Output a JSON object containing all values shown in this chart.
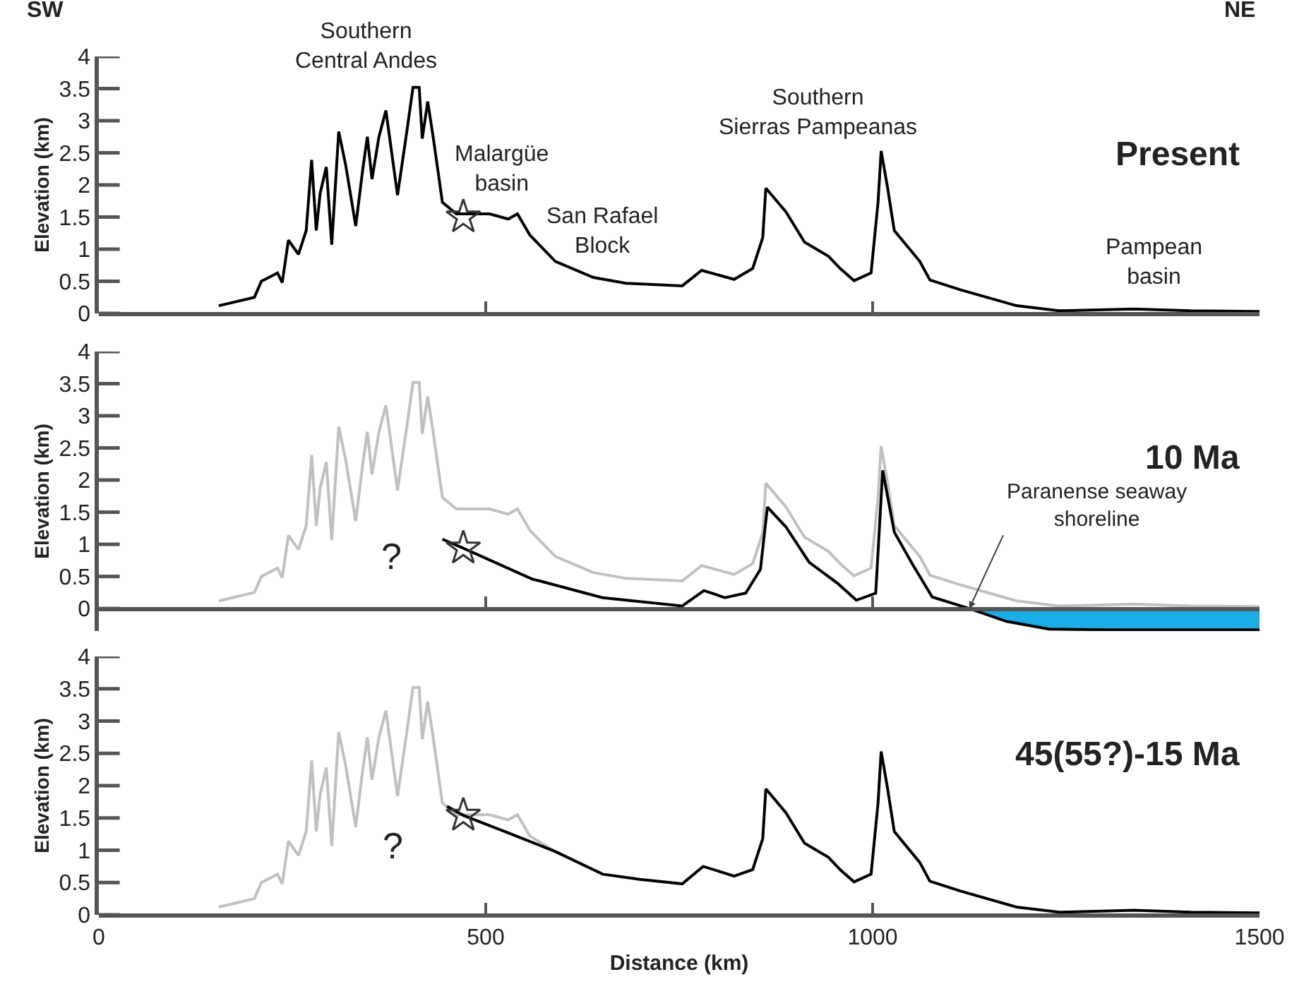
{
  "chart_data": [
    {
      "type": "line",
      "title": "Present",
      "ylabel": "Elevation (km)",
      "xlim": [
        0,
        1500
      ],
      "xticks": [
        0,
        500,
        1000,
        1500
      ],
      "ylim": [
        0,
        4
      ],
      "yticks": [
        0,
        0.5,
        1,
        1.5,
        2,
        2.5,
        3,
        3.5,
        4
      ],
      "tick_labels": "y",
      "legend": false,
      "series": [
        {
          "type": "line",
          "color": "#000000",
          "marker": "none",
          "x": [
            155,
            201,
            210,
            231,
            237,
            245,
            258,
            268,
            275,
            281,
            286,
            294,
            301,
            310,
            319,
            332,
            341,
            347,
            353,
            362,
            371,
            386,
            398,
            406,
            414,
            418,
            425,
            432,
            444,
            462,
            505,
            529,
            541,
            557,
            590,
            639,
            681,
            754,
            779,
            821,
            845,
            858,
            862,
            888,
            912,
            943,
            958,
            976,
            998,
            1007,
            1011,
            1019,
            1028,
            1061,
            1074,
            1113,
            1186,
            1241,
            1338,
            1411,
            1500
          ],
          "values": [
            0.12,
            0.25,
            0.5,
            0.63,
            0.48,
            1.14,
            0.92,
            1.29,
            2.39,
            1.29,
            1.87,
            2.28,
            1.07,
            2.83,
            2.31,
            1.36,
            2.24,
            2.75,
            2.09,
            2.75,
            3.16,
            1.84,
            2.83,
            3.52,
            3.52,
            2.72,
            3.3,
            2.75,
            1.73,
            1.55,
            1.55,
            1.47,
            1.55,
            1.22,
            0.81,
            0.56,
            0.47,
            0.43,
            0.67,
            0.53,
            0.7,
            1.18,
            1.95,
            1.58,
            1.11,
            0.89,
            0.7,
            0.51,
            0.63,
            1.73,
            2.53,
            1.98,
            1.29,
            0.81,
            0.52,
            0.37,
            0.12,
            0.04,
            0.07,
            0.04,
            0.03
          ]
        },
        {
          "type": "scatter",
          "color": "#333333",
          "marker": "star",
          "x": [
            471
          ],
          "values": [
            1.5
          ]
        }
      ],
      "annotations": [
        "SW",
        "NE",
        "Southern\nCentral Andes",
        "Malargüe\nbasin",
        "San Rafael\nBlock",
        "Southern\nSierras Pampeanas",
        "Pampean\nbasin"
      ]
    },
    {
      "type": "line",
      "title": "10 Ma",
      "ylabel": "Elevation (km)",
      "xlim": [
        0,
        1500
      ],
      "xticks": [
        0,
        500,
        1000,
        1500
      ],
      "ylim": [
        -0.35,
        4
      ],
      "yticks": [
        0,
        0.5,
        1,
        1.5,
        2,
        2.5,
        3,
        3.5,
        4
      ],
      "tick_labels": "y",
      "legend": false,
      "series": [
        {
          "type": "line",
          "color": "#c0c0c0",
          "marker": "none",
          "x": [
            155,
            201,
            210,
            231,
            237,
            245,
            258,
            268,
            275,
            281,
            286,
            294,
            301,
            310,
            319,
            332,
            341,
            347,
            353,
            362,
            371,
            386,
            398,
            406,
            414,
            418,
            425,
            432,
            444,
            462,
            505,
            529,
            541,
            557,
            590,
            639,
            681,
            754,
            779,
            821,
            845,
            858,
            862,
            888,
            912,
            943,
            958,
            976,
            998,
            1007,
            1011,
            1019,
            1028,
            1061,
            1074,
            1113,
            1186,
            1241,
            1338,
            1411,
            1500
          ],
          "values": [
            0.12,
            0.25,
            0.5,
            0.63,
            0.48,
            1.14,
            0.92,
            1.29,
            2.39,
            1.29,
            1.87,
            2.28,
            1.07,
            2.83,
            2.31,
            1.36,
            2.24,
            2.75,
            2.09,
            2.75,
            3.16,
            1.84,
            2.83,
            3.52,
            3.52,
            2.72,
            3.3,
            2.75,
            1.73,
            1.55,
            1.55,
            1.47,
            1.55,
            1.22,
            0.81,
            0.56,
            0.47,
            0.43,
            0.67,
            0.53,
            0.7,
            1.18,
            1.95,
            1.58,
            1.11,
            0.89,
            0.7,
            0.51,
            0.63,
            1.73,
            2.53,
            1.98,
            1.29,
            0.81,
            0.52,
            0.37,
            0.12,
            0.04,
            0.07,
            0.04,
            0.03
          ]
        },
        {
          "type": "area",
          "color": "#1aaee8",
          "x": [
            1125,
            1173,
            1228,
            1300,
            1400,
            1500
          ],
          "values": [
            0,
            -0.2,
            -0.32,
            -0.33,
            -0.33,
            -0.33
          ]
        },
        {
          "type": "line",
          "color": "#000000",
          "marker": "none",
          "x": [
            444,
            471,
            560,
            651,
            754,
            782,
            809,
            836,
            855,
            864,
            888,
            918,
            955,
            979,
            1004,
            1013,
            1028,
            1052,
            1077,
            1125
          ],
          "values": [
            1.08,
            0.94,
            0.46,
            0.17,
            0.04,
            0.28,
            0.17,
            0.24,
            0.61,
            1.58,
            1.27,
            0.72,
            0.39,
            0.13,
            0.24,
            2.15,
            1.19,
            0.68,
            0.18,
            0
          ]
        },
        {
          "type": "scatter",
          "color": "#333333",
          "marker": "star",
          "x": [
            471
          ],
          "values": [
            0.94
          ]
        }
      ],
      "annotations": [
        "?",
        {
          "text": "Paranense seaway\nshoreline",
          "x": 1125,
          "y": 0
        }
      ]
    },
    {
      "type": "line",
      "title": "45(55?)-15 Ma",
      "ylabel": "Elevation (km)",
      "xlabel": "Distance (km)",
      "xlim": [
        0,
        1500
      ],
      "xticks": [
        0,
        500,
        1000,
        1500
      ],
      "ylim": [
        0,
        4
      ],
      "yticks": [
        0,
        0.5,
        1,
        1.5,
        2,
        2.5,
        3,
        3.5,
        4
      ],
      "legend": false,
      "series": [
        {
          "type": "line",
          "color": "#c0c0c0",
          "marker": "none",
          "x": [
            155,
            201,
            210,
            231,
            237,
            245,
            258,
            268,
            275,
            281,
            286,
            294,
            301,
            310,
            319,
            332,
            341,
            347,
            353,
            362,
            371,
            386,
            398,
            406,
            414,
            418,
            425,
            432,
            444,
            462,
            505,
            529,
            541,
            557,
            590
          ],
          "values": [
            0.12,
            0.25,
            0.5,
            0.63,
            0.48,
            1.14,
            0.92,
            1.29,
            2.39,
            1.29,
            1.87,
            2.28,
            1.07,
            2.83,
            2.31,
            1.36,
            2.24,
            2.75,
            2.09,
            2.75,
            3.16,
            1.84,
            2.83,
            3.52,
            3.52,
            2.72,
            3.3,
            2.75,
            1.73,
            1.55,
            1.55,
            1.47,
            1.55,
            1.22,
            0.98
          ]
        },
        {
          "type": "line",
          "color": "#000000",
          "marker": "none",
          "x": [
            450,
            471,
            529,
            590,
            651,
            699,
            754,
            781,
            821,
            845,
            858,
            862,
            888,
            912,
            943,
            958,
            976,
            998,
            1007,
            1011,
            1019,
            1028,
            1061,
            1074,
            1113,
            1186,
            1241,
            1338,
            1411,
            1500
          ],
          "values": [
            1.68,
            1.54,
            1.27,
            0.98,
            0.63,
            0.55,
            0.48,
            0.75,
            0.6,
            0.7,
            1.18,
            1.95,
            1.58,
            1.11,
            0.89,
            0.7,
            0.51,
            0.63,
            1.73,
            2.53,
            1.98,
            1.29,
            0.81,
            0.52,
            0.37,
            0.12,
            0.04,
            0.07,
            0.04,
            0.03
          ]
        },
        {
          "type": "scatter",
          "color": "#333333",
          "marker": "star",
          "x": [
            471
          ],
          "values": [
            1.54
          ]
        }
      ],
      "annotations": [
        "?"
      ]
    }
  ]
}
